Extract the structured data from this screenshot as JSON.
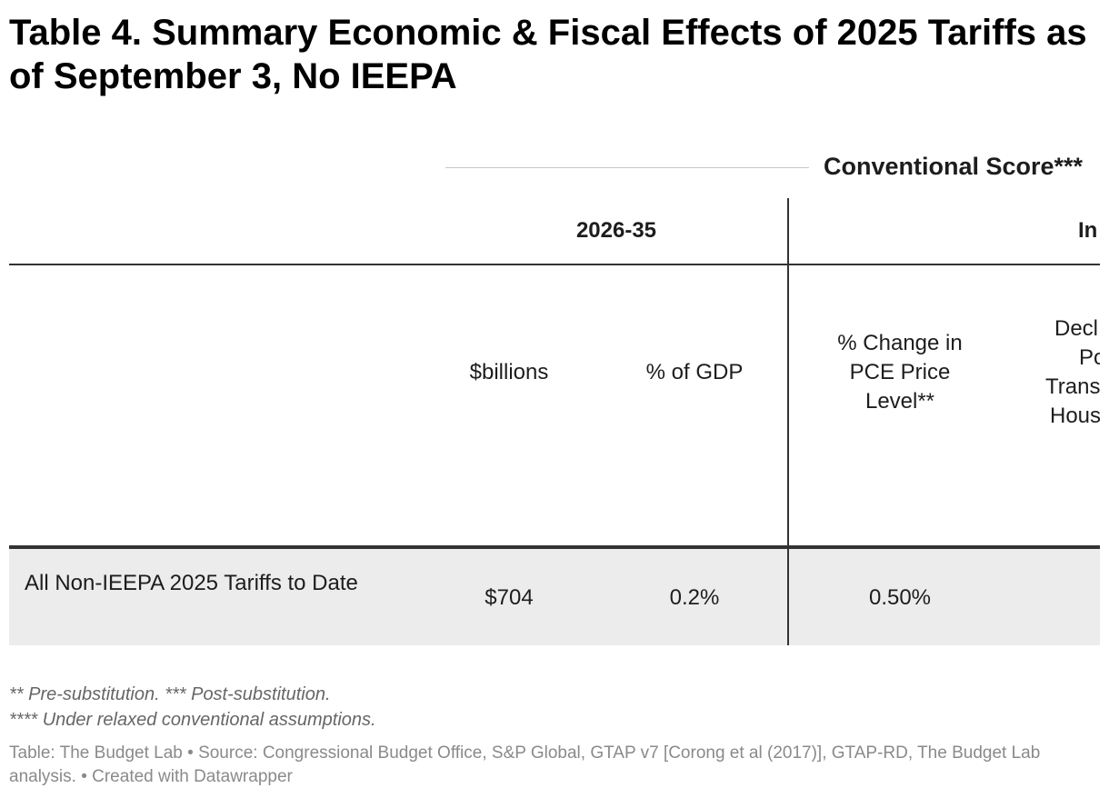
{
  "title": "Table 4. Summary Economic & Fiscal Effects of 2025 Tariffs as of September 3, No IEEPA",
  "chart_data": {
    "type": "table",
    "spanner": "Conventional Score***",
    "column_groups": [
      "2026-35",
      "In"
    ],
    "columns": [
      "",
      "$billions",
      "% of GDP",
      "% Change in PCE Price Level**",
      "Decl Po Trans Hous"
    ],
    "column_fragments": {
      "partial_header_lines": [
        "Decl",
        "Po",
        "Trans",
        "Hous"
      ]
    },
    "rows": [
      {
        "label": "All Non-IEEPA 2025 Tariffs to Date",
        "values": [
          "$704",
          "0.2%",
          "0.50%"
        ]
      }
    ]
  },
  "notes": [
    "** Pre-substitution. *** Post-substitution.",
    "**** Under relaxed conventional assumptions."
  ],
  "source": "Table: The Budget Lab • Source: Congressional Budget Office, S&P Global, GTAP v7 [Corong et al (2017)], GTAP-RD, The Budget Lab analysis. • Created with Datawrapper",
  "colors": {
    "row_bg": "#ececec",
    "rule": "#333333",
    "note": "#666666"
  }
}
